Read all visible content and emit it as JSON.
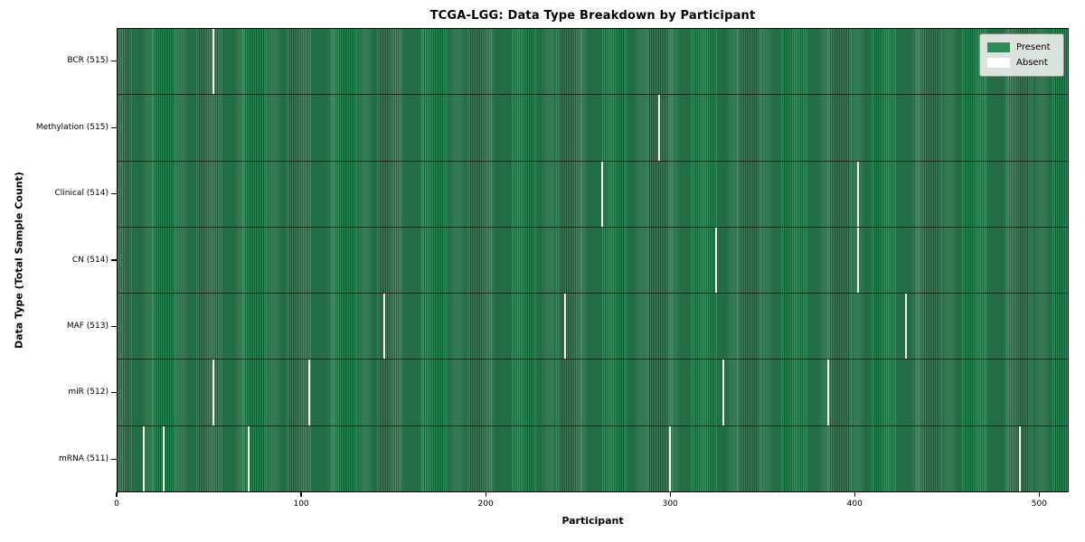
{
  "chart_data": {
    "type": "heatmap",
    "title": "TCGA-LGG: Data Type Breakdown by Participant",
    "xlabel": "Participant",
    "ylabel": "Data Type (Total Sample Count)",
    "n_participants": 516,
    "x_range": [
      0,
      516
    ],
    "x_tick_values": [
      0,
      100,
      200,
      300,
      400,
      500
    ],
    "x_tick_labels": [
      "0",
      "100",
      "200",
      "300",
      "400",
      "500"
    ],
    "grid": false,
    "legend_position": "upper right",
    "legend": [
      {
        "label": "Present",
        "color": "#2e8b57"
      },
      {
        "label": "Absent",
        "color": "#ffffff"
      }
    ],
    "rows": [
      {
        "label": "BCR (515)",
        "data_type": "BCR",
        "present_count": 515,
        "absent_participants": [
          52
        ]
      },
      {
        "label": "Methylation (515)",
        "data_type": "Methylation",
        "present_count": 515,
        "absent_participants": [
          294
        ]
      },
      {
        "label": "Clinical (514)",
        "data_type": "Clinical",
        "present_count": 514,
        "absent_participants": [
          263,
          402
        ]
      },
      {
        "label": "CN (514)",
        "data_type": "CN",
        "present_count": 514,
        "absent_participants": [
          325,
          402
        ]
      },
      {
        "label": "MAF (513)",
        "data_type": "MAF",
        "present_count": 513,
        "absent_participants": [
          145,
          243,
          428
        ]
      },
      {
        "label": "miR (512)",
        "data_type": "miR",
        "present_count": 512,
        "absent_participants": [
          52,
          104,
          329,
          386
        ]
      },
      {
        "label": "mRNA (511)",
        "data_type": "mRNA",
        "present_count": 511,
        "absent_participants": [
          14,
          25,
          71,
          300,
          490
        ]
      }
    ]
  },
  "colors": {
    "present": "#2e8b57",
    "present_edge": "#174f2f",
    "absent_line": "#f2f2ee",
    "legend_background": "#e9ede9",
    "spine": "#0e0e0e"
  }
}
